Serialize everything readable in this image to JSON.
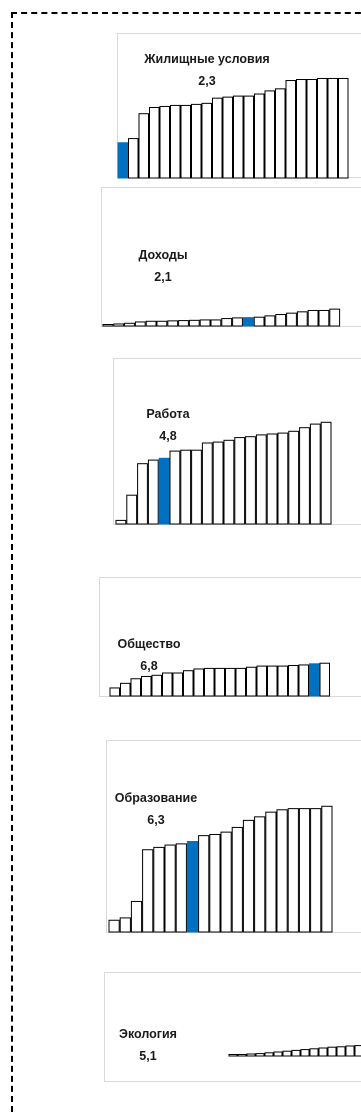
{
  "colors": {
    "highlight": "#0070c0",
    "bar_fill": "#ffffff",
    "bar_stroke": "#000000",
    "panel_border": "#d9d9d9",
    "frame_border": "#000000"
  },
  "chart_data": [
    {
      "type": "bar",
      "title": "Жилищные условия",
      "value_label": "2,3",
      "values": [
        1.7,
        1.9,
        3.1,
        3.4,
        3.45,
        3.5,
        3.5,
        3.55,
        3.6,
        3.85,
        3.9,
        3.95,
        3.95,
        4.05,
        4.2,
        4.3,
        4.7,
        4.75,
        4.75,
        4.8,
        4.8,
        4.8
      ],
      "highlight_index": 0,
      "ylim": [
        0,
        6.8
      ]
    },
    {
      "type": "bar",
      "title": "Доходы",
      "value_label": "2,1",
      "values": [
        0.08,
        0.15,
        0.2,
        0.3,
        0.35,
        0.35,
        0.38,
        0.4,
        0.42,
        0.45,
        0.45,
        0.55,
        0.6,
        0.62,
        0.65,
        0.75,
        0.85,
        0.95,
        1.05,
        1.15,
        1.15,
        1.25
      ],
      "highlight_index": 13,
      "ylim": [
        0,
        10
      ]
    },
    {
      "type": "bar",
      "title": "Работа",
      "value_label": "4,8",
      "values": [
        0.2,
        1.6,
        3.35,
        3.55,
        3.65,
        4.05,
        4.1,
        4.1,
        4.5,
        4.55,
        4.65,
        4.8,
        4.85,
        4.95,
        5.0,
        5.05,
        5.15,
        5.35,
        5.55,
        5.65
      ],
      "highlight_index": 4,
      "ylim": [
        0,
        9
      ]
    },
    {
      "type": "bar",
      "title": "Общество",
      "value_label": "6,8",
      "values": [
        0.7,
        1.1,
        1.5,
        1.7,
        1.8,
        2.0,
        2.0,
        2.2,
        2.35,
        2.4,
        2.4,
        2.4,
        2.4,
        2.5,
        2.6,
        2.6,
        2.6,
        2.65,
        2.7,
        2.8,
        2.85
      ],
      "highlight_index": 19,
      "ylim": [
        0,
        10
      ]
    },
    {
      "type": "bar",
      "title": "Образование",
      "value_label": "6,3",
      "values": [
        0.5,
        0.6,
        1.3,
        3.5,
        3.6,
        3.7,
        3.75,
        3.85,
        4.1,
        4.15,
        4.25,
        4.45,
        4.75,
        4.9,
        5.1,
        5.2,
        5.25,
        5.25,
        5.25,
        5.35
      ],
      "highlight_index": 7,
      "ylim": [
        0,
        8
      ]
    },
    {
      "type": "bar",
      "title": "Экология",
      "value_label": "5,1",
      "values": [
        0.1,
        0.15,
        0.25,
        0.3,
        0.4,
        0.5,
        0.6,
        0.7,
        0.8,
        0.9,
        1.0,
        1.1,
        1.15,
        1.25,
        1.3
      ],
      "highlight_index": -1,
      "ylim": [
        0,
        10
      ]
    }
  ]
}
